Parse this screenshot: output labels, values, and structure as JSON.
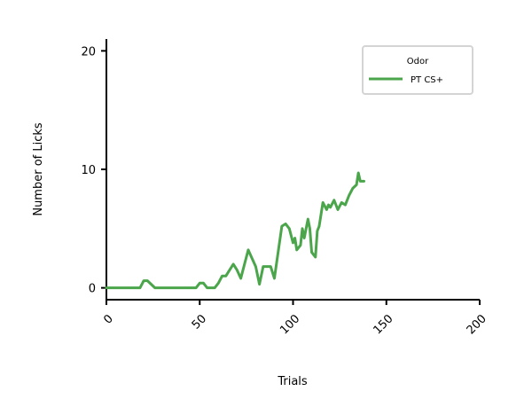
{
  "chart_data": {
    "type": "line",
    "title": "",
    "xlabel": "Trials",
    "ylabel": "Number of Licks",
    "xlim": [
      0,
      200
    ],
    "ylim": [
      -1,
      21
    ],
    "xticks": [
      0,
      50,
      100,
      150,
      200
    ],
    "yticks": [
      0,
      10,
      20
    ],
    "xtick_labels": [
      "0",
      "50",
      "100",
      "150",
      "200"
    ],
    "ytick_labels": [
      "0",
      "10",
      "20"
    ],
    "grid": false,
    "legend": {
      "title": "Odor",
      "placement": "top-right",
      "entries": [
        "PT CS+"
      ]
    },
    "series": [
      {
        "name": "PT CS+",
        "color": "#4ba54b",
        "x": [
          0,
          5,
          10,
          15,
          18,
          20,
          22,
          24,
          26,
          30,
          35,
          40,
          45,
          48,
          50,
          52,
          54,
          56,
          58,
          60,
          62,
          64,
          66,
          68,
          70,
          72,
          74,
          76,
          78,
          80,
          82,
          84,
          85,
          86,
          88,
          90,
          92,
          94,
          96,
          98,
          100,
          101,
          102,
          104,
          105,
          106,
          108,
          109,
          110,
          112,
          113,
          114,
          116,
          118,
          119,
          120,
          122,
          124,
          126,
          128,
          130,
          132,
          134,
          135,
          136,
          138
        ],
        "y": [
          0,
          0,
          0,
          0,
          0,
          0.6,
          0.6,
          0.3,
          0,
          0,
          0,
          0,
          0,
          0,
          0.4,
          0.4,
          0,
          0,
          0,
          0.4,
          1.0,
          1.0,
          1.5,
          2.0,
          1.5,
          0.8,
          2.0,
          3.2,
          2.5,
          1.8,
          0.3,
          1.8,
          1.8,
          1.8,
          1.8,
          0.8,
          3.0,
          5.2,
          5.4,
          5.0,
          3.8,
          4.2,
          3.2,
          3.6,
          5.0,
          4.2,
          5.8,
          5.0,
          3.0,
          2.6,
          4.8,
          5.2,
          7.2,
          6.6,
          7.0,
          6.8,
          7.4,
          6.6,
          7.2,
          7.0,
          7.8,
          8.4,
          8.7,
          9.7,
          9.0,
          9.0
        ]
      }
    ]
  }
}
